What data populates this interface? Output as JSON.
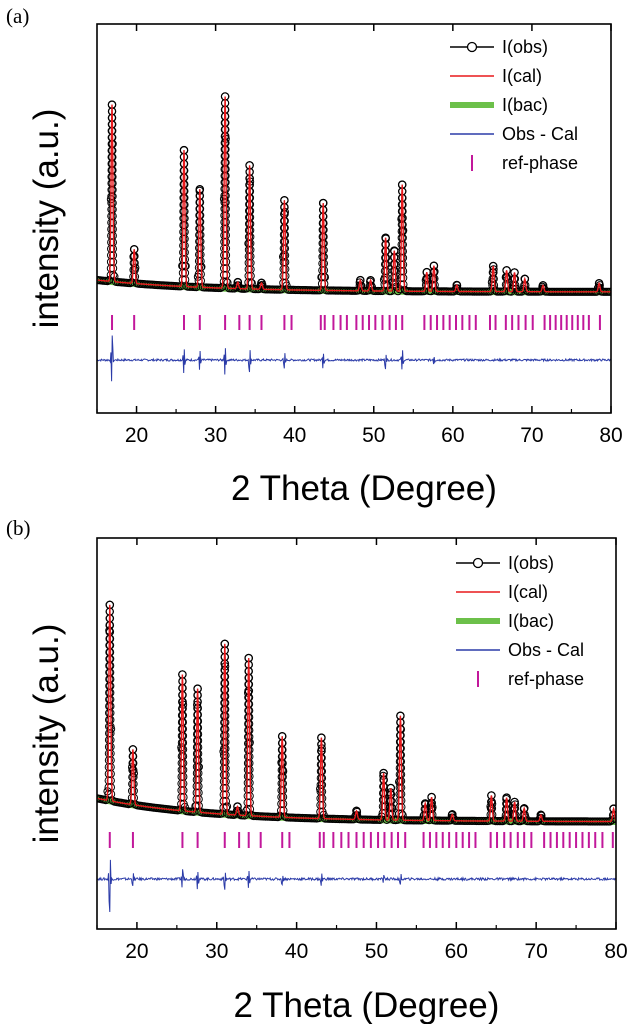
{
  "chart_data": [
    {
      "panel_label": "(a)",
      "type": "line",
      "xlabel": "2 Theta (Degree)",
      "ylabel": "intensity (a.u.)",
      "xlim": [
        15,
        80
      ],
      "xticks": [
        20,
        30,
        40,
        50,
        60,
        70,
        80
      ],
      "y_ticks_shown": false,
      "legend_position": "top-right",
      "legend": [
        {
          "label": "I(obs)",
          "style": "line-open-circle",
          "color": "#000000"
        },
        {
          "label": "I(cal)",
          "style": "line",
          "color": "#e8191c"
        },
        {
          "label": "I(bac)",
          "style": "thick-line",
          "color": "#6cc04a"
        },
        {
          "label": "Obs - Cal",
          "style": "line",
          "color": "#2b3ba8"
        },
        {
          "label": "ref-phase",
          "style": "vertical-tick",
          "color": "#c2189b"
        }
      ],
      "background": {
        "start": 0.75,
        "end": 0.19,
        "decay": 14
      },
      "peaks": [
        {
          "pos": 16.9,
          "height": 8.3
        },
        {
          "pos": 19.7,
          "height": 1.6
        },
        {
          "pos": 26.0,
          "height": 6.4
        },
        {
          "pos": 28.0,
          "height": 4.6
        },
        {
          "pos": 31.2,
          "height": 9.0
        },
        {
          "pos": 32.8,
          "height": 0.3
        },
        {
          "pos": 34.3,
          "height": 5.8
        },
        {
          "pos": 35.8,
          "height": 0.3
        },
        {
          "pos": 38.7,
          "height": 4.2
        },
        {
          "pos": 43.6,
          "height": 4.1
        },
        {
          "pos": 48.3,
          "height": 0.5
        },
        {
          "pos": 49.6,
          "height": 0.5
        },
        {
          "pos": 51.5,
          "height": 2.5
        },
        {
          "pos": 52.6,
          "height": 1.9
        },
        {
          "pos": 53.6,
          "height": 5.0
        },
        {
          "pos": 56.7,
          "height": 0.9
        },
        {
          "pos": 57.6,
          "height": 1.2
        },
        {
          "pos": 60.5,
          "height": 0.3
        },
        {
          "pos": 65.1,
          "height": 1.2
        },
        {
          "pos": 66.8,
          "height": 1.0
        },
        {
          "pos": 67.8,
          "height": 0.9
        },
        {
          "pos": 69.1,
          "height": 0.6
        },
        {
          "pos": 71.4,
          "height": 0.3
        },
        {
          "pos": 78.5,
          "height": 0.4
        }
      ],
      "ref_phase_positions": [
        16.9,
        19.7,
        26.0,
        28.0,
        31.2,
        33.0,
        34.3,
        35.8,
        38.7,
        39.6,
        43.3,
        43.8,
        44.9,
        45.8,
        46.6,
        47.8,
        48.6,
        49.4,
        50.2,
        51.1,
        52.0,
        52.8,
        53.6,
        56.4,
        57.2,
        58.0,
        58.8,
        59.6,
        60.4,
        61.2,
        62.1,
        62.9,
        64.7,
        65.4,
        66.7,
        67.5,
        68.3,
        69.2,
        70.1,
        71.6,
        72.3,
        73.0,
        73.7,
        74.4,
        75.1,
        75.8,
        76.5,
        77.2,
        78.6
      ],
      "residual_spikes": [
        {
          "pos": 16.9,
          "amp": 1.0
        },
        {
          "pos": 26.0,
          "amp": 0.5
        },
        {
          "pos": 28.0,
          "amp": 0.35
        },
        {
          "pos": 31.2,
          "amp": 0.55
        },
        {
          "pos": 34.3,
          "amp": 0.45
        },
        {
          "pos": 38.7,
          "amp": 0.3
        },
        {
          "pos": 43.6,
          "amp": 0.3
        },
        {
          "pos": 51.5,
          "amp": 0.3
        },
        {
          "pos": 53.6,
          "amp": 0.4
        },
        {
          "pos": 57.6,
          "amp": 0.15
        }
      ]
    },
    {
      "panel_label": "(b)",
      "type": "line",
      "xlabel": "2 Theta (Degree)",
      "ylabel": "intensity (a.u.)",
      "xlim": [
        15,
        80
      ],
      "xticks": [
        20,
        30,
        40,
        50,
        60,
        70,
        80
      ],
      "y_ticks_shown": false,
      "legend_position": "top-right",
      "legend": [
        {
          "label": "I(obs)",
          "style": "line-open-circle",
          "color": "#000000"
        },
        {
          "label": "I(cal)",
          "style": "line",
          "color": "#e8191c"
        },
        {
          "label": "I(bac)",
          "style": "thick-line",
          "color": "#6cc04a"
        },
        {
          "label": "Obs - Cal",
          "style": "line",
          "color": "#2b3ba8"
        },
        {
          "label": "ref-phase",
          "style": "vertical-tick",
          "color": "#c2189b"
        }
      ],
      "background": {
        "start": 1.3,
        "end": 0.2,
        "decay": 14
      },
      "peaks": [
        {
          "pos": 16.6,
          "height": 9.2
        },
        {
          "pos": 19.5,
          "height": 2.6
        },
        {
          "pos": 25.7,
          "height": 6.4
        },
        {
          "pos": 27.6,
          "height": 5.8
        },
        {
          "pos": 31.0,
          "height": 8.0
        },
        {
          "pos": 32.6,
          "height": 0.4
        },
        {
          "pos": 34.0,
          "height": 7.4
        },
        {
          "pos": 38.2,
          "height": 3.8
        },
        {
          "pos": 43.1,
          "height": 3.8
        },
        {
          "pos": 47.5,
          "height": 0.4
        },
        {
          "pos": 50.9,
          "height": 2.2
        },
        {
          "pos": 51.8,
          "height": 1.5
        },
        {
          "pos": 53.0,
          "height": 4.9
        },
        {
          "pos": 56.1,
          "height": 0.8
        },
        {
          "pos": 56.9,
          "height": 1.1
        },
        {
          "pos": 59.5,
          "height": 0.3
        },
        {
          "pos": 64.4,
          "height": 1.2
        },
        {
          "pos": 66.3,
          "height": 1.1
        },
        {
          "pos": 67.3,
          "height": 0.9
        },
        {
          "pos": 68.5,
          "height": 0.6
        },
        {
          "pos": 70.6,
          "height": 0.3
        },
        {
          "pos": 79.7,
          "height": 0.6
        }
      ],
      "ref_phase_positions": [
        16.6,
        19.5,
        25.7,
        27.6,
        31.0,
        32.8,
        34.0,
        35.5,
        38.2,
        39.1,
        42.9,
        43.4,
        44.6,
        45.6,
        46.5,
        47.5,
        48.4,
        49.3,
        50.2,
        51.0,
        51.9,
        52.7,
        53.6,
        55.9,
        56.7,
        57.5,
        58.3,
        59.1,
        60.0,
        60.8,
        61.6,
        62.4,
        64.3,
        65.1,
        66.0,
        66.8,
        67.7,
        68.5,
        69.4,
        71.0,
        71.8,
        72.6,
        73.4,
        74.2,
        75.0,
        75.8,
        76.6,
        77.4,
        78.3,
        79.6
      ],
      "residual_spikes": [
        {
          "pos": 16.6,
          "amp": 1.0
        },
        {
          "pos": 19.5,
          "amp": 0.2
        },
        {
          "pos": 25.7,
          "amp": 0.35
        },
        {
          "pos": 27.6,
          "amp": 0.3
        },
        {
          "pos": 31.0,
          "amp": 0.3
        },
        {
          "pos": 34.0,
          "amp": 0.3
        },
        {
          "pos": 38.2,
          "amp": 0.2
        },
        {
          "pos": 43.1,
          "amp": 0.2
        },
        {
          "pos": 50.9,
          "amp": 0.15
        },
        {
          "pos": 53.0,
          "amp": 0.2
        }
      ]
    }
  ]
}
